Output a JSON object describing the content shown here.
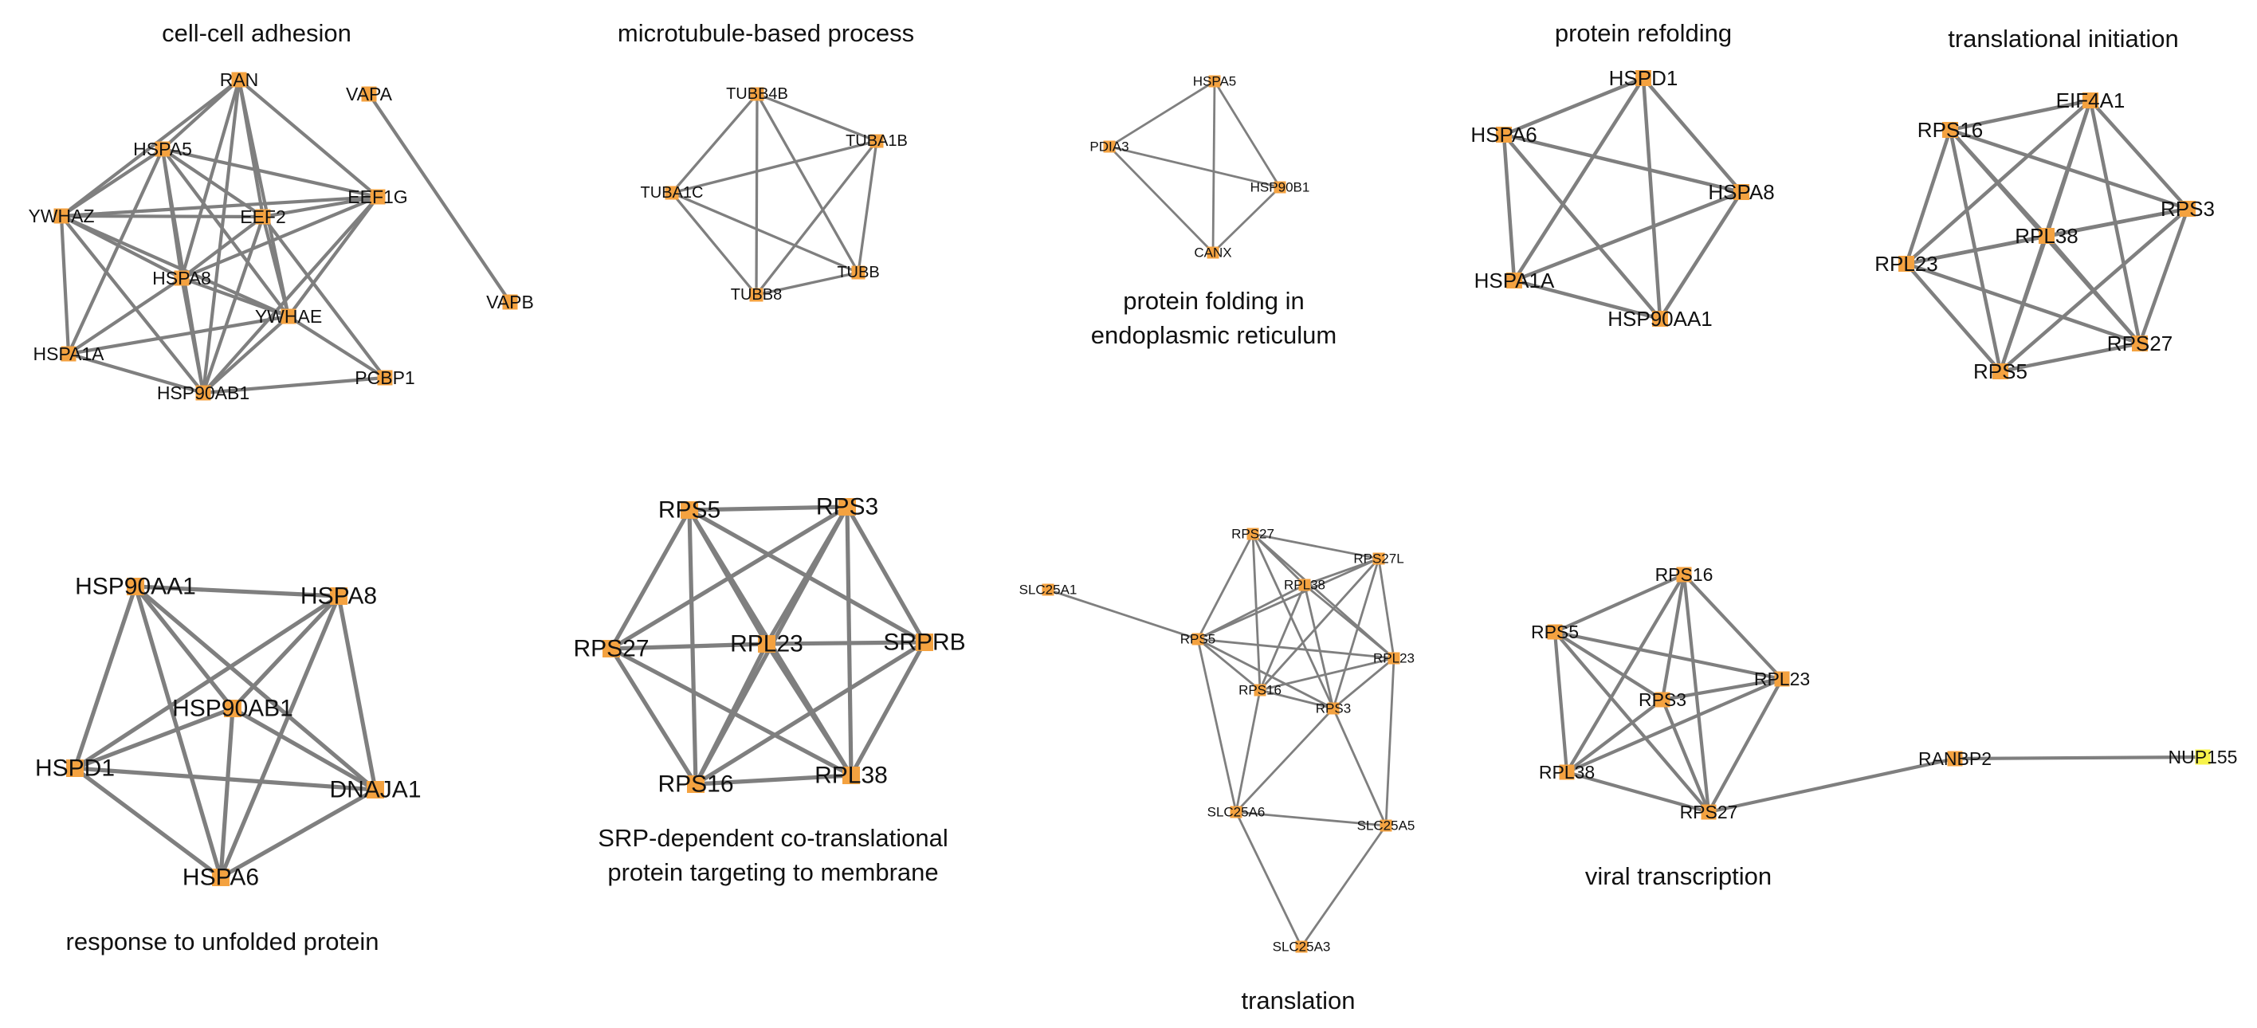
{
  "colors": {
    "node": "#f4a240",
    "node_alt": "#f7f34a",
    "edge": "#7f7f7f",
    "text": "#111111"
  },
  "panels": [
    {
      "id": "cell-cell-adhesion",
      "title": [
        "cell-cell adhesion"
      ],
      "nodes": [
        "RAN",
        "VAPA",
        "HSPA5",
        "EEF1G",
        "YWHAZ",
        "EEF2",
        "HSPA8",
        "YWHAE",
        "VAPB",
        "HSPA1A",
        "HSP90AB1",
        "PCBP1"
      ],
      "edges": [
        [
          "RAN",
          "HSPA5"
        ],
        [
          "RAN",
          "YWHAZ"
        ],
        [
          "RAN",
          "EEF2"
        ],
        [
          "RAN",
          "HSPA8"
        ],
        [
          "RAN",
          "YWHAE"
        ],
        [
          "RAN",
          "EEF1G"
        ],
        [
          "RAN",
          "HSP90AB1"
        ],
        [
          "VAPA",
          "VAPB"
        ],
        [
          "HSPA5",
          "YWHAZ"
        ],
        [
          "HSPA5",
          "EEF1G"
        ],
        [
          "HSPA5",
          "EEF2"
        ],
        [
          "HSPA5",
          "HSPA8"
        ],
        [
          "HSPA5",
          "YWHAE"
        ],
        [
          "HSPA5",
          "HSPA1A"
        ],
        [
          "HSPA5",
          "HSP90AB1"
        ],
        [
          "EEF1G",
          "EEF2"
        ],
        [
          "EEF1G",
          "HSPA8"
        ],
        [
          "EEF1G",
          "YWHAE"
        ],
        [
          "EEF1G",
          "HSP90AB1"
        ],
        [
          "EEF1G",
          "YWHAZ"
        ],
        [
          "YWHAZ",
          "EEF2"
        ],
        [
          "YWHAZ",
          "HSPA8"
        ],
        [
          "YWHAZ",
          "YWHAE"
        ],
        [
          "YWHAZ",
          "HSPA1A"
        ],
        [
          "YWHAZ",
          "HSP90AB1"
        ],
        [
          "EEF2",
          "HSPA8"
        ],
        [
          "EEF2",
          "YWHAE"
        ],
        [
          "EEF2",
          "HSP90AB1"
        ],
        [
          "EEF2",
          "PCBP1"
        ],
        [
          "HSPA8",
          "YWHAE"
        ],
        [
          "HSPA8",
          "HSPA1A"
        ],
        [
          "HSPA8",
          "HSP90AB1"
        ],
        [
          "YWHAE",
          "HSP90AB1"
        ],
        [
          "YWHAE",
          "HSPA1A"
        ],
        [
          "YWHAE",
          "PCBP1"
        ],
        [
          "HSPA1A",
          "HSP90AB1"
        ],
        [
          "HSP90AB1",
          "PCBP1"
        ]
      ]
    },
    {
      "id": "microtubule-based-process",
      "title": [
        "microtubule-based process"
      ],
      "nodes": [
        "TUBB4B",
        "TUBA1B",
        "TUBA1C",
        "TUBB",
        "TUBB8"
      ],
      "edges": [
        [
          "TUBB4B",
          "TUBA1B"
        ],
        [
          "TUBB4B",
          "TUBA1C"
        ],
        [
          "TUBB4B",
          "TUBB"
        ],
        [
          "TUBB4B",
          "TUBB8"
        ],
        [
          "TUBA1B",
          "TUBA1C"
        ],
        [
          "TUBA1B",
          "TUBB"
        ],
        [
          "TUBA1B",
          "TUBB8"
        ],
        [
          "TUBA1C",
          "TUBB"
        ],
        [
          "TUBA1C",
          "TUBB8"
        ],
        [
          "TUBB",
          "TUBB8"
        ]
      ]
    },
    {
      "id": "protein-folding-er",
      "title": [
        "protein folding in",
        "endoplasmic reticulum"
      ],
      "nodes": [
        "HSPA5",
        "PDIA3",
        "HSP90B1",
        "CANX"
      ],
      "edges": [
        [
          "HSPA5",
          "PDIA3"
        ],
        [
          "HSPA5",
          "HSP90B1"
        ],
        [
          "HSPA5",
          "CANX"
        ],
        [
          "PDIA3",
          "HSP90B1"
        ],
        [
          "PDIA3",
          "CANX"
        ],
        [
          "HSP90B1",
          "CANX"
        ]
      ]
    },
    {
      "id": "protein-refolding",
      "title": [
        "protein refolding"
      ],
      "nodes": [
        "HSPD1",
        "HSPA6",
        "HSPA8",
        "HSPA1A",
        "HSP90AA1"
      ],
      "edges": [
        [
          "HSPD1",
          "HSPA6"
        ],
        [
          "HSPD1",
          "HSPA8"
        ],
        [
          "HSPD1",
          "HSPA1A"
        ],
        [
          "HSPD1",
          "HSP90AA1"
        ],
        [
          "HSPA6",
          "HSPA8"
        ],
        [
          "HSPA6",
          "HSPA1A"
        ],
        [
          "HSPA6",
          "HSP90AA1"
        ],
        [
          "HSPA8",
          "HSPA1A"
        ],
        [
          "HSPA8",
          "HSP90AA1"
        ],
        [
          "HSPA1A",
          "HSP90AA1"
        ]
      ]
    },
    {
      "id": "translational-initiation",
      "title": [
        "translational initiation"
      ],
      "nodes": [
        "EIF4A1",
        "RPS16",
        "RPS3",
        "RPL38",
        "RPL23",
        "RPS27",
        "RPS5"
      ],
      "edges": [
        [
          "EIF4A1",
          "RPS16"
        ],
        [
          "EIF4A1",
          "RPS3"
        ],
        [
          "EIF4A1",
          "RPL38"
        ],
        [
          "EIF4A1",
          "RPL23"
        ],
        [
          "EIF4A1",
          "RPS27"
        ],
        [
          "EIF4A1",
          "RPS5"
        ],
        [
          "RPS16",
          "RPS3"
        ],
        [
          "RPS16",
          "RPL38"
        ],
        [
          "RPS16",
          "RPL23"
        ],
        [
          "RPS16",
          "RPS27"
        ],
        [
          "RPS16",
          "RPS5"
        ],
        [
          "RPS3",
          "RPL38"
        ],
        [
          "RPS3",
          "RPL23"
        ],
        [
          "RPS3",
          "RPS27"
        ],
        [
          "RPS3",
          "RPS5"
        ],
        [
          "RPL38",
          "RPL23"
        ],
        [
          "RPL38",
          "RPS27"
        ],
        [
          "RPL38",
          "RPS5"
        ],
        [
          "RPL23",
          "RPS27"
        ],
        [
          "RPL23",
          "RPS5"
        ],
        [
          "RPS27",
          "RPS5"
        ]
      ]
    },
    {
      "id": "response-to-unfolded-protein",
      "title": [
        "response to unfolded protein"
      ],
      "nodes": [
        "HSP90AA1",
        "HSPA8",
        "HSP90AB1",
        "HSPD1",
        "DNAJA1",
        "HSPA6"
      ],
      "edges": [
        [
          "HSP90AA1",
          "HSPA8"
        ],
        [
          "HSP90AA1",
          "HSP90AB1"
        ],
        [
          "HSP90AA1",
          "HSPD1"
        ],
        [
          "HSP90AA1",
          "DNAJA1"
        ],
        [
          "HSP90AA1",
          "HSPA6"
        ],
        [
          "HSPA8",
          "HSP90AB1"
        ],
        [
          "HSPA8",
          "HSPD1"
        ],
        [
          "HSPA8",
          "DNAJA1"
        ],
        [
          "HSPA8",
          "HSPA6"
        ],
        [
          "HSP90AB1",
          "HSPD1"
        ],
        [
          "HSP90AB1",
          "DNAJA1"
        ],
        [
          "HSP90AB1",
          "HSPA6"
        ],
        [
          "HSPD1",
          "DNAJA1"
        ],
        [
          "HSPD1",
          "HSPA6"
        ],
        [
          "DNAJA1",
          "HSPA6"
        ]
      ]
    },
    {
      "id": "srp-dependent-targeting",
      "title": [
        "SRP-dependent co-translational",
        "protein targeting to membrane"
      ],
      "nodes": [
        "RPS5",
        "RPS3",
        "RPS27",
        "RPL23",
        "SRPRB",
        "RPS16",
        "RPL38"
      ],
      "edges": [
        [
          "RPS5",
          "RPS3"
        ],
        [
          "RPS5",
          "RPS27"
        ],
        [
          "RPS5",
          "RPL23"
        ],
        [
          "RPS5",
          "SRPRB"
        ],
        [
          "RPS5",
          "RPS16"
        ],
        [
          "RPS5",
          "RPL38"
        ],
        [
          "RPS3",
          "RPS27"
        ],
        [
          "RPS3",
          "RPL23"
        ],
        [
          "RPS3",
          "SRPRB"
        ],
        [
          "RPS3",
          "RPS16"
        ],
        [
          "RPS3",
          "RPL38"
        ],
        [
          "RPS27",
          "RPL23"
        ],
        [
          "RPS27",
          "RPS16"
        ],
        [
          "RPS27",
          "RPL38"
        ],
        [
          "RPL23",
          "SRPRB"
        ],
        [
          "RPL23",
          "RPS16"
        ],
        [
          "RPL23",
          "RPL38"
        ],
        [
          "SRPRB",
          "RPS16"
        ],
        [
          "SRPRB",
          "RPL38"
        ],
        [
          "RPS16",
          "RPL38"
        ]
      ]
    },
    {
      "id": "translation",
      "title": [
        "translation"
      ],
      "nodes": [
        "RPS27",
        "RPS27L",
        "RPL38",
        "SLC25A1",
        "RPS5",
        "RPL23",
        "RPS16",
        "RPS3",
        "SLC25A6",
        "SLC25A5",
        "SLC25A3"
      ],
      "edges": [
        [
          "RPS27",
          "RPS27L"
        ],
        [
          "RPS27",
          "RPL38"
        ],
        [
          "RPS27",
          "RPS5"
        ],
        [
          "RPS27",
          "RPL23"
        ],
        [
          "RPS27",
          "RPS16"
        ],
        [
          "RPS27",
          "RPS3"
        ],
        [
          "RPS27L",
          "RPL38"
        ],
        [
          "RPS27L",
          "RPS5"
        ],
        [
          "RPS27L",
          "RPL23"
        ],
        [
          "RPS27L",
          "RPS16"
        ],
        [
          "RPS27L",
          "RPS3"
        ],
        [
          "RPL38",
          "RPS5"
        ],
        [
          "RPL38",
          "RPL23"
        ],
        [
          "RPL38",
          "RPS16"
        ],
        [
          "RPL38",
          "RPS3"
        ],
        [
          "SLC25A1",
          "RPS5"
        ],
        [
          "RPS5",
          "RPL23"
        ],
        [
          "RPS5",
          "RPS16"
        ],
        [
          "RPS5",
          "RPS3"
        ],
        [
          "RPS5",
          "SLC25A6"
        ],
        [
          "RPL23",
          "RPS16"
        ],
        [
          "RPL23",
          "RPS3"
        ],
        [
          "RPL23",
          "SLC25A5"
        ],
        [
          "RPS16",
          "RPS3"
        ],
        [
          "RPS16",
          "SLC25A6"
        ],
        [
          "RPS3",
          "SLC25A6"
        ],
        [
          "RPS3",
          "SLC25A5"
        ],
        [
          "SLC25A6",
          "SLC25A5"
        ],
        [
          "SLC25A6",
          "SLC25A3"
        ],
        [
          "SLC25A5",
          "SLC25A3"
        ]
      ]
    },
    {
      "id": "viral-transcription",
      "title": [
        "viral transcription"
      ],
      "nodes": [
        "RPS16",
        "RPS5",
        "RPL23",
        "RPS3",
        "RPL38",
        "RPS27",
        "RANBP2",
        "NUP155"
      ],
      "highlight": [
        "NUP155"
      ],
      "edges": [
        [
          "RPS16",
          "RPS5"
        ],
        [
          "RPS16",
          "RPL23"
        ],
        [
          "RPS16",
          "RPS3"
        ],
        [
          "RPS16",
          "RPL38"
        ],
        [
          "RPS16",
          "RPS27"
        ],
        [
          "RPS5",
          "RPL23"
        ],
        [
          "RPS5",
          "RPS3"
        ],
        [
          "RPS5",
          "RPL38"
        ],
        [
          "RPS5",
          "RPS27"
        ],
        [
          "RPL23",
          "RPS3"
        ],
        [
          "RPL23",
          "RPL38"
        ],
        [
          "RPL23",
          "RPS27"
        ],
        [
          "RPS3",
          "RPL38"
        ],
        [
          "RPS3",
          "RPS27"
        ],
        [
          "RPL38",
          "RPS27"
        ],
        [
          "RPS27",
          "RANBP2"
        ],
        [
          "RANBP2",
          "NUP155"
        ]
      ]
    }
  ]
}
